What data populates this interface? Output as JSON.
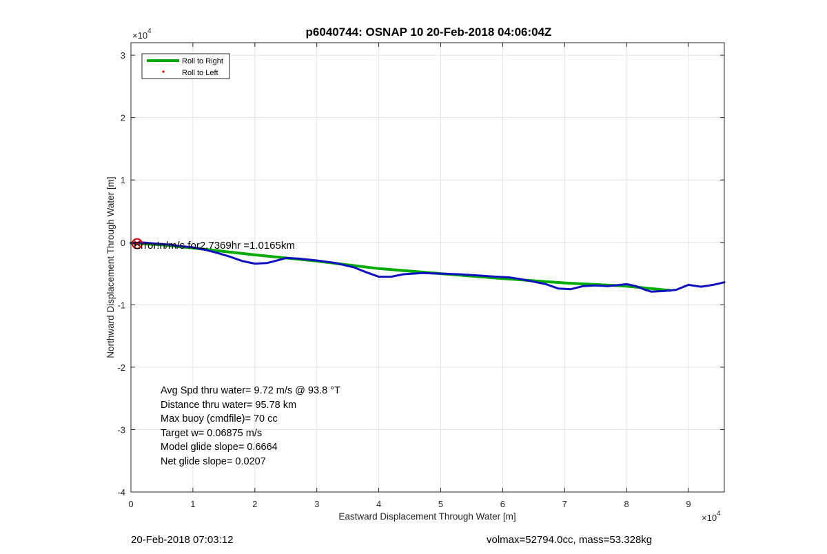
{
  "chart_data": {
    "type": "line",
    "title": "p6040744: OSNAP 10 20-Feb-2018 04:06:04Z",
    "xlabel": "Eastward Displacement Through Water [m]",
    "ylabel": "Northward Displacement Through Water [m]",
    "x_exponent_label": "×10",
    "x_exponent": "4",
    "y_exponent_label": "×10",
    "y_exponent": "4",
    "xlim": [
      0,
      95780
    ],
    "ylim": [
      -40000,
      32000
    ],
    "grid": true,
    "legend_location": "top-left",
    "x_ticks": [
      0,
      10000,
      20000,
      30000,
      40000,
      50000,
      60000,
      70000,
      80000,
      90000
    ],
    "x_tick_labels": [
      "0",
      "1",
      "2",
      "3",
      "4",
      "5",
      "6",
      "7",
      "8",
      "9"
    ],
    "y_ticks": [
      -40000,
      -30000,
      -20000,
      -10000,
      0,
      10000,
      20000,
      30000
    ],
    "y_tick_labels": [
      "-4",
      "-3",
      "-2",
      "-1",
      "0",
      "1",
      "2",
      "3"
    ],
    "legend": [
      {
        "name": "Roll to Right",
        "color": "#00aa00",
        "style": "line"
      },
      {
        "name": "Roll to Left",
        "color": "#ff0000",
        "style": "dot"
      }
    ],
    "series": [
      {
        "name": "Roll to Right",
        "color": "#00aa00",
        "x": [
          0,
          5000,
          10000,
          20000,
          30000,
          40000,
          50000,
          60000,
          70000,
          80000,
          87000
        ],
        "y": [
          -100,
          -400,
          -900,
          -2000,
          -3000,
          -4200,
          -5000,
          -5800,
          -6500,
          -7000,
          -7700
        ]
      },
      {
        "color": "#1010c0",
        "x": [
          0,
          2000,
          4000,
          6000,
          8000,
          10000,
          12000,
          14000,
          16000,
          18000,
          20000,
          22000,
          24000,
          25000,
          27000,
          30000,
          33000,
          36000,
          38000,
          40000,
          42000,
          44000,
          47000,
          50000,
          53000,
          56000,
          59000,
          61000,
          63000,
          65000,
          67000,
          69000,
          71000,
          73000,
          75000,
          77000,
          79000,
          80000,
          81500,
          83000,
          84000,
          86000,
          88000,
          90000,
          92000,
          94000,
          95780
        ],
        "y": [
          -100,
          -20,
          -200,
          -350,
          -600,
          -800,
          -1200,
          -1700,
          -2300,
          -3000,
          -3400,
          -3300,
          -2800,
          -2500,
          -2600,
          -2900,
          -3300,
          -4000,
          -4800,
          -5500,
          -5500,
          -5100,
          -4900,
          -5000,
          -5100,
          -5300,
          -5500,
          -5600,
          -5900,
          -6300,
          -6700,
          -7400,
          -7500,
          -7000,
          -6900,
          -7000,
          -6800,
          -6700,
          -7000,
          -7600,
          -7900,
          -7800,
          -7600,
          -6800,
          -7100,
          -6800,
          -6400
        ]
      }
    ],
    "markers": [
      {
        "label": "start-marker",
        "x": 1000,
        "y": -200,
        "color": "#cc0000"
      }
    ],
    "annotations": {
      "near_start": "Error!n/m/s for2.7369hr =1.0165km",
      "stats": [
        "Avg Spd thru water=  9.72 m/s @  93.8 °T",
        "Distance thru water= 95.78 km",
        "Max buoy (cmdfile)= 70 cc",
        "Target w= 0.06875 m/s",
        "Model glide slope= 0.6664",
        "Net glide slope= 0.0207"
      ]
    }
  },
  "footer": {
    "left": "20-Feb-2018 07:03:12",
    "right": "volmax=52794.0cc, mass=53.328kg"
  }
}
